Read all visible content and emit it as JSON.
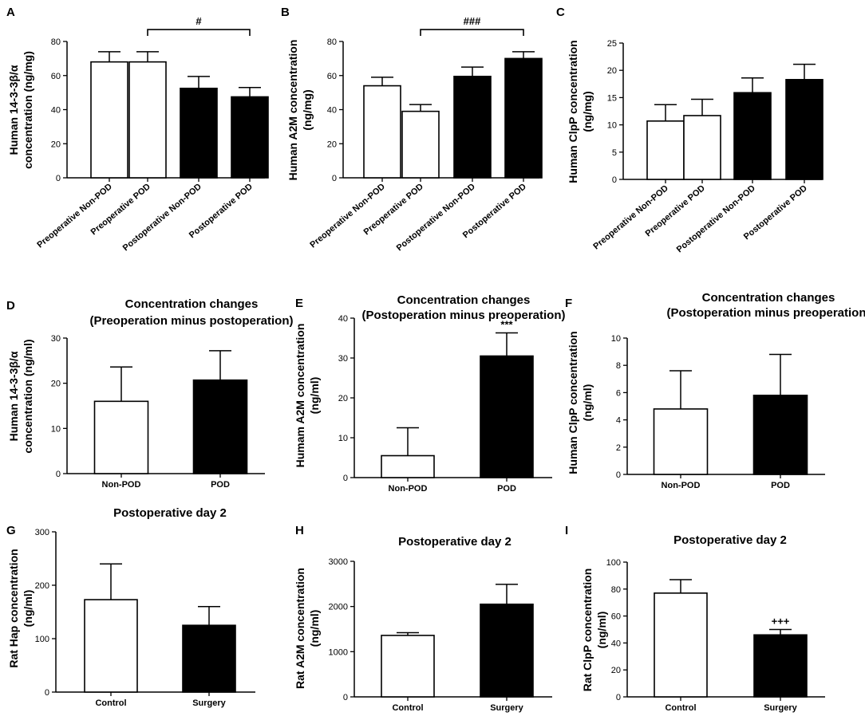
{
  "colors": {
    "ink": "#000000",
    "paper": "#ffffff"
  },
  "chart_data": [
    {
      "id": "A",
      "label": "A",
      "type": "bar",
      "title": [],
      "ylabel": [
        "Human 14-3-3β/α",
        "concentration (ng/mg)"
      ],
      "categories": [
        "Preoperative Non-POD",
        "Preoperative POD",
        "Postoperative Non-POD",
        "Postoperative POD"
      ],
      "values": [
        68,
        68,
        52.5,
        47.5
      ],
      "errors": [
        6,
        6,
        7,
        5.5
      ],
      "fills": [
        "white",
        "white",
        "black",
        "black"
      ],
      "ylim": [
        0,
        80
      ],
      "yticks": [
        0,
        20,
        40,
        60,
        80
      ],
      "bracket": {
        "from": 1,
        "to": 3,
        "at": 87,
        "text": "#"
      }
    },
    {
      "id": "B",
      "label": "B",
      "type": "bar",
      "title": [],
      "ylabel": [
        "Human A2M concentration",
        "(ng/mg)"
      ],
      "categories": [
        "Preoperative Non-POD",
        "Preoperative POD",
        "Postoperative Non-POD",
        "Postoperative POD"
      ],
      "values": [
        54,
        39,
        59.5,
        70
      ],
      "errors": [
        5,
        4,
        5.5,
        4
      ],
      "fills": [
        "white",
        "white",
        "black",
        "black"
      ],
      "ylim": [
        0,
        80
      ],
      "yticks": [
        0,
        20,
        40,
        60,
        80
      ],
      "bracket": {
        "from": 1,
        "to": 3,
        "at": 87,
        "text": "###"
      }
    },
    {
      "id": "C",
      "label": "C",
      "type": "bar",
      "title": [],
      "ylabel": [
        "Human ClpP concentration",
        "(ng/mg)"
      ],
      "categories": [
        "Preoperative Non-POD",
        "Preoperative POD",
        "Postoperative Non-POD",
        "Postoperative POD"
      ],
      "values": [
        10.7,
        11.7,
        15.9,
        18.3
      ],
      "errors": [
        3,
        3,
        2.7,
        2.8
      ],
      "fills": [
        "white",
        "white",
        "black",
        "black"
      ],
      "ylim": [
        0,
        25
      ],
      "yticks": [
        0,
        5,
        10,
        15,
        20,
        25
      ]
    },
    {
      "id": "D",
      "label": "D",
      "type": "bar",
      "title": [
        "Concentration changes",
        "(Preoperation minus postoperation)"
      ],
      "ylabel": [
        "Human 14-3-3β/α",
        "concentration (ng/ml)"
      ],
      "categories": [
        "Non-POD",
        "POD"
      ],
      "values": [
        16,
        20.7
      ],
      "errors": [
        7.6,
        6.5
      ],
      "fills": [
        "white",
        "black"
      ],
      "ylim": [
        0,
        30
      ],
      "yticks": [
        0,
        10,
        20,
        30
      ]
    },
    {
      "id": "E",
      "label": "E",
      "type": "bar",
      "title": [
        "Concentration changes",
        "(Postoperation minus preoperation)"
      ],
      "ylabel": [
        "Humam A2M concentration",
        "(ng/ml)"
      ],
      "categories": [
        "Non-POD",
        "POD"
      ],
      "values": [
        5.5,
        30.5
      ],
      "errors": [
        7,
        5.8
      ],
      "fills": [
        "white",
        "black"
      ],
      "ylim": [
        0,
        40
      ],
      "yticks": [
        0,
        10,
        20,
        30,
        40
      ],
      "marks": [
        {
          "bar": 1,
          "text": "***"
        }
      ]
    },
    {
      "id": "F",
      "label": "F",
      "type": "bar",
      "title": [
        "Concentration changes",
        "(Postoperation minus preoperation)"
      ],
      "ylabel": [
        "Human ClpP concentration",
        "(ng/ml)"
      ],
      "categories": [
        "Non-POD",
        "POD"
      ],
      "values": [
        4.8,
        5.8
      ],
      "errors": [
        2.8,
        3
      ],
      "fills": [
        "white",
        "black"
      ],
      "ylim": [
        0,
        10
      ],
      "yticks": [
        0,
        2,
        4,
        6,
        8,
        10
      ]
    },
    {
      "id": "G",
      "label": "G",
      "type": "bar",
      "title": [
        "Postoperative day 2"
      ],
      "ylabel": [
        "Rat Hap concentration",
        "(ng/ml)"
      ],
      "categories": [
        "Control",
        "Surgery"
      ],
      "values": [
        173,
        125
      ],
      "errors": [
        67,
        35
      ],
      "fills": [
        "white",
        "black"
      ],
      "ylim": [
        0,
        300
      ],
      "yticks": [
        0,
        100,
        200,
        300
      ]
    },
    {
      "id": "H",
      "label": "H",
      "type": "bar",
      "title": [
        "Postoperative day 2"
      ],
      "ylabel": [
        "Rat A2M concentration",
        "(ng/ml)"
      ],
      "categories": [
        "Control",
        "Surgery"
      ],
      "values": [
        1360,
        2050
      ],
      "errors": [
        60,
        440
      ],
      "fills": [
        "white",
        "black"
      ],
      "ylim": [
        0,
        3000
      ],
      "yticks": [
        0,
        1000,
        2000,
        3000
      ]
    },
    {
      "id": "I",
      "label": "I",
      "type": "bar",
      "title": [
        "Postoperative day 2"
      ],
      "ylabel": [
        "Rat ClpP concentration",
        "(ng/ml)"
      ],
      "categories": [
        "Control",
        "Surgery"
      ],
      "values": [
        77,
        46
      ],
      "errors": [
        10,
        4
      ],
      "fills": [
        "white",
        "black"
      ],
      "ylim": [
        0,
        100
      ],
      "yticks": [
        0,
        20,
        40,
        60,
        80,
        100
      ],
      "marks": [
        {
          "bar": 1,
          "text": "+++"
        }
      ]
    }
  ]
}
